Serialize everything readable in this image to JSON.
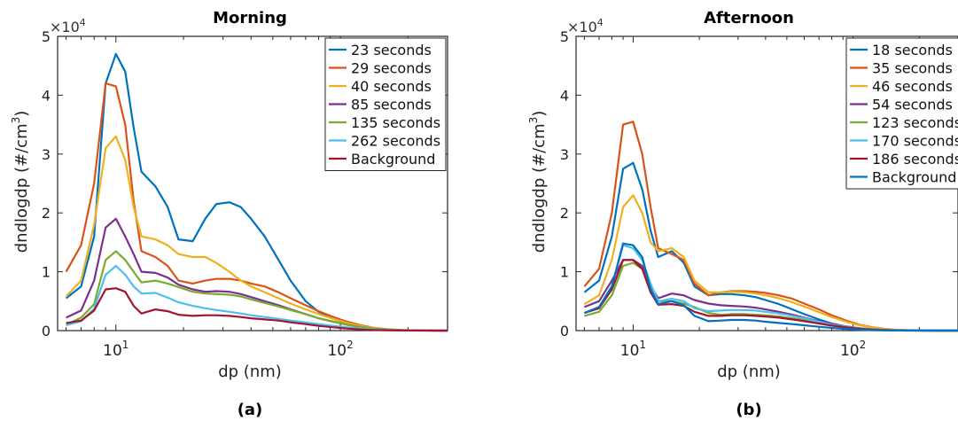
{
  "chart_data": [
    {
      "type": "line",
      "title": "Morning",
      "panel_label": "(a)",
      "xlabel": "dp (nm)",
      "ylabel": "dndlogdp (#/cm3)",
      "ylabel_main": "dndlogdp (#/cm",
      "ylabel_sup": "3",
      "ylabel_close": ")",
      "y_multiplier": "×10",
      "y_multiplier_exp": "4",
      "x_scale": "log",
      "xlim": [
        5.5,
        300
      ],
      "ylim": [
        0,
        50000
      ],
      "y_tick_values": [
        0,
        10000,
        20000,
        30000,
        40000,
        50000
      ],
      "y_tick_labels": [
        "0",
        "1",
        "2",
        "3",
        "4",
        "5"
      ],
      "x_tick_values": [
        10,
        100
      ],
      "x_tick_base": "10",
      "x_tick_exps": [
        "1",
        "2"
      ],
      "grid": false,
      "legend_position": "top-right",
      "x": [
        6,
        7,
        8,
        9,
        10,
        11,
        12,
        13,
        15,
        17,
        19,
        22,
        25,
        28,
        32,
        36,
        40,
        46,
        53,
        60,
        70,
        80,
        93,
        107,
        123,
        140,
        160,
        185,
        210,
        240,
        280,
        300
      ],
      "series": [
        {
          "name": "23 seconds",
          "color": "#0072BD",
          "values": [
            5500,
            7500,
            16000,
            42000,
            47000,
            44000,
            34500,
            27000,
            24500,
            21000,
            15500,
            15200,
            19000,
            21500,
            21800,
            21000,
            19000,
            16000,
            12000,
            8500,
            5000,
            3200,
            2000,
            1200,
            700,
            400,
            200,
            100,
            50,
            20,
            0,
            0
          ]
        },
        {
          "name": "29 seconds",
          "color": "#D95319",
          "values": [
            10000,
            14500,
            25000,
            42000,
            41500,
            35000,
            22000,
            13500,
            12500,
            11000,
            8500,
            8000,
            8500,
            8800,
            8800,
            8500,
            8000,
            7500,
            6500,
            5500,
            4300,
            3300,
            2300,
            1500,
            900,
            500,
            250,
            100,
            50,
            20,
            0,
            0
          ]
        },
        {
          "name": "40 seconds",
          "color": "#EDB120",
          "values": [
            5800,
            8500,
            18000,
            31000,
            33000,
            29000,
            21000,
            16000,
            15500,
            14500,
            13000,
            12500,
            12500,
            11500,
            10000,
            8500,
            7500,
            6500,
            5500,
            4600,
            3600,
            2800,
            2000,
            1300,
            800,
            450,
            220,
            100,
            50,
            20,
            0,
            0
          ]
        },
        {
          "name": "85 seconds",
          "color": "#7E2F8E",
          "values": [
            2200,
            3400,
            8500,
            17500,
            19000,
            16000,
            13000,
            10000,
            9800,
            9000,
            7800,
            7000,
            6600,
            6700,
            6600,
            6200,
            5700,
            5000,
            4300,
            3600,
            2800,
            2100,
            1500,
            1000,
            600,
            330,
            170,
            80,
            40,
            15,
            0,
            0
          ]
        },
        {
          "name": "135 seconds",
          "color": "#77AC30",
          "values": [
            1000,
            2200,
            4500,
            12000,
            13500,
            12000,
            10000,
            8200,
            8500,
            8000,
            7400,
            6600,
            6300,
            6200,
            6100,
            5800,
            5300,
            4700,
            4100,
            3500,
            2800,
            2100,
            1500,
            1000,
            600,
            330,
            160,
            80,
            40,
            15,
            0,
            0
          ]
        },
        {
          "name": "262 seconds",
          "color": "#4DBEEE",
          "values": [
            900,
            1600,
            3700,
            9500,
            11000,
            9500,
            7500,
            6300,
            6400,
            5600,
            4800,
            4200,
            3800,
            3500,
            3200,
            2900,
            2600,
            2300,
            2000,
            1700,
            1400,
            1100,
            800,
            550,
            350,
            200,
            100,
            50,
            25,
            10,
            0,
            0
          ]
        },
        {
          "name": "Background",
          "color": "#A2142F",
          "values": [
            1300,
            1700,
            3400,
            7000,
            7200,
            6600,
            4200,
            2900,
            3600,
            3300,
            2700,
            2500,
            2600,
            2600,
            2500,
            2300,
            2100,
            1900,
            1700,
            1400,
            1100,
            800,
            550,
            350,
            200,
            110,
            60,
            30,
            15,
            5,
            0,
            0
          ]
        }
      ]
    },
    {
      "type": "line",
      "title": "Afternoon",
      "panel_label": "(b)",
      "xlabel": "dp (nm)",
      "ylabel": "dndlogdp (#/cm3)",
      "ylabel_main": "dndlogdp (#/cm",
      "ylabel_sup": "3",
      "ylabel_close": ")",
      "y_multiplier": "×10",
      "y_multiplier_exp": "4",
      "x_scale": "log",
      "xlim": [
        5.5,
        300
      ],
      "ylim": [
        0,
        50000
      ],
      "y_tick_values": [
        0,
        10000,
        20000,
        30000,
        40000,
        50000
      ],
      "y_tick_labels": [
        "0",
        "1",
        "2",
        "3",
        "4",
        "5"
      ],
      "x_tick_values": [
        10,
        100
      ],
      "x_tick_base": "10",
      "x_tick_exps": [
        "1",
        "2"
      ],
      "grid": false,
      "legend_position": "top-right",
      "x": [
        6,
        7,
        8,
        9,
        10,
        11,
        12,
        13,
        15,
        17,
        19,
        22,
        25,
        28,
        32,
        36,
        40,
        46,
        53,
        60,
        70,
        80,
        93,
        107,
        123,
        140,
        160,
        185,
        210,
        240,
        280,
        300
      ],
      "series": [
        {
          "name": "18 seconds",
          "color": "#0072BD",
          "values": [
            6500,
            8500,
            16000,
            27500,
            28500,
            24000,
            17000,
            12500,
            13500,
            11500,
            7500,
            6000,
            6200,
            6200,
            6000,
            5700,
            5200,
            4500,
            3600,
            2800,
            1900,
            1200,
            700,
            400,
            200,
            100,
            50,
            20,
            10,
            5,
            0,
            0
          ]
        },
        {
          "name": "35 seconds",
          "color": "#D95319",
          "values": [
            7500,
            10500,
            20000,
            35000,
            35500,
            30000,
            21000,
            14000,
            13000,
            12000,
            8000,
            6000,
            6500,
            6700,
            6700,
            6600,
            6400,
            6000,
            5400,
            4600,
            3600,
            2600,
            1700,
            1000,
            550,
            280,
            120,
            50,
            20,
            10,
            0,
            0
          ]
        },
        {
          "name": "46 seconds",
          "color": "#EDB120",
          "values": [
            4500,
            6000,
            12000,
            21000,
            23000,
            20000,
            15000,
            13500,
            14000,
            12500,
            8500,
            6500,
            6500,
            6600,
            6500,
            6300,
            6000,
            5500,
            4800,
            4100,
            3100,
            2300,
            1500,
            900,
            500,
            250,
            120,
            50,
            20,
            10,
            0,
            0
          ]
        },
        {
          "name": "54 seconds",
          "color": "#7E2F8E",
          "values": [
            4000,
            5000,
            8500,
            12000,
            12000,
            11000,
            7500,
            5500,
            6300,
            6000,
            5200,
            4600,
            4300,
            4200,
            4100,
            3900,
            3600,
            3200,
            2700,
            2200,
            1600,
            1100,
            700,
            400,
            200,
            100,
            50,
            20,
            10,
            5,
            0,
            0
          ]
        },
        {
          "name": "123 seconds",
          "color": "#77AC30",
          "values": [
            2500,
            3200,
            6000,
            11000,
            11500,
            10500,
            7000,
            5000,
            5000,
            4600,
            4000,
            3000,
            2700,
            2800,
            2800,
            2700,
            2600,
            2400,
            2100,
            1800,
            1300,
            950,
            600,
            350,
            180,
            90,
            40,
            15,
            5,
            0,
            0,
            0
          ]
        },
        {
          "name": "170 seconds",
          "color": "#4DBEEE",
          "values": [
            3000,
            4000,
            7500,
            14500,
            14000,
            12000,
            8000,
            5000,
            5400,
            5000,
            3800,
            3300,
            3400,
            3500,
            3500,
            3400,
            3200,
            2900,
            2500,
            2100,
            1500,
            1000,
            650,
            380,
            200,
            100,
            45,
            20,
            10,
            5,
            0,
            0
          ]
        },
        {
          "name": "186 seconds",
          "color": "#A2142F",
          "values": [
            3000,
            3800,
            7000,
            12000,
            12000,
            10500,
            6500,
            4400,
            4500,
            4200,
            3200,
            2500,
            2500,
            2600,
            2600,
            2500,
            2400,
            2200,
            1900,
            1600,
            1200,
            850,
            550,
            320,
            170,
            80,
            35,
            15,
            5,
            0,
            0,
            0
          ]
        },
        {
          "name": "Background",
          "color": "#0072BD",
          "values": [
            3000,
            4000,
            7500,
            14800,
            14500,
            12500,
            7000,
            4500,
            5000,
            4300,
            2500,
            1600,
            1700,
            1800,
            1800,
            1700,
            1500,
            1300,
            1100,
            900,
            650,
            450,
            280,
            150,
            80,
            35,
            15,
            5,
            0,
            0,
            0,
            0
          ]
        }
      ]
    }
  ]
}
